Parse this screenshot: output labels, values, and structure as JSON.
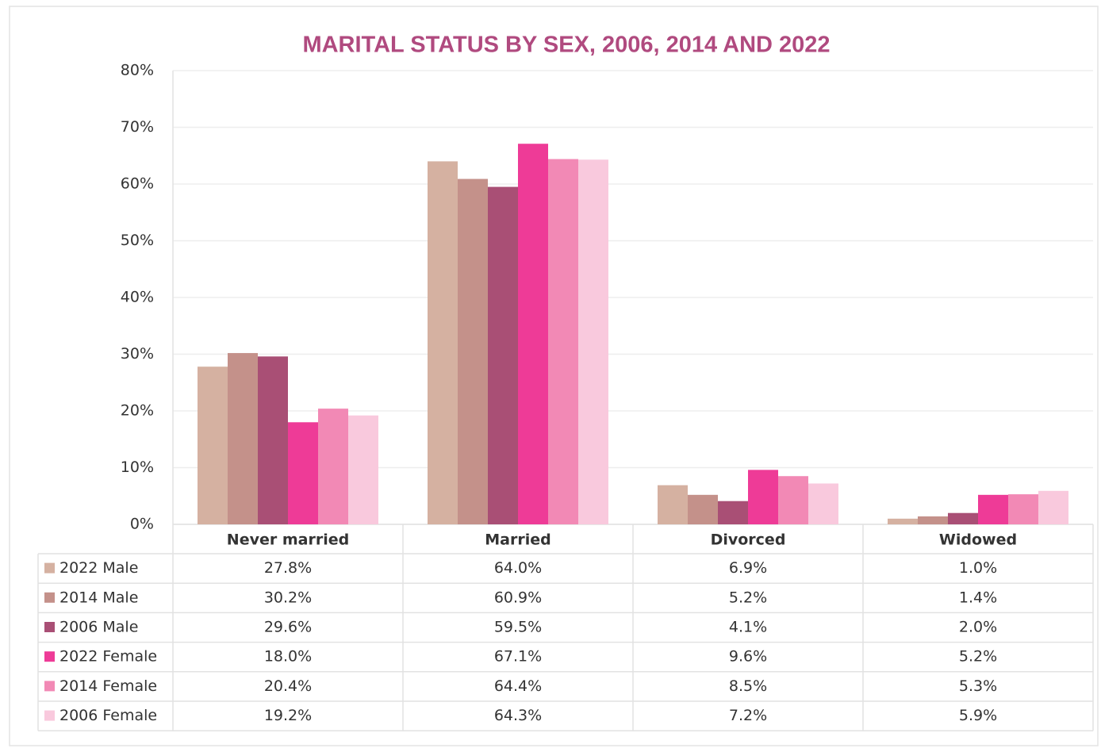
{
  "chart_data": {
    "type": "bar",
    "title": "MARITAL STATUS BY SEX, 2006, 2014 AND 2022",
    "categories": [
      "Never married",
      "Married",
      "Divorced",
      "Widowed"
    ],
    "series": [
      {
        "name": "2022 Male",
        "color": "#d5b1a1",
        "values": [
          27.8,
          64.0,
          6.9,
          1.0
        ],
        "value_labels": [
          "27.8%",
          "64.0%",
          "6.9%",
          "1.0%"
        ]
      },
      {
        "name": "2014 Male",
        "color": "#c4918a",
        "values": [
          30.2,
          60.9,
          5.2,
          1.4
        ],
        "value_labels": [
          "30.2%",
          "60.9%",
          "5.2%",
          "1.4%"
        ]
      },
      {
        "name": "2006 Male",
        "color": "#a94f75",
        "values": [
          29.6,
          59.5,
          4.1,
          2.0
        ],
        "value_labels": [
          "29.6%",
          "59.5%",
          "4.1%",
          "2.0%"
        ]
      },
      {
        "name": "2022 Female",
        "color": "#ee3b97",
        "values": [
          18.0,
          67.1,
          9.6,
          5.2
        ],
        "value_labels": [
          "18.0%",
          "67.1%",
          "9.6%",
          "5.2%"
        ]
      },
      {
        "name": "2014 Female",
        "color": "#f289b5",
        "values": [
          20.4,
          64.4,
          8.5,
          5.3
        ],
        "value_labels": [
          "20.4%",
          "64.4%",
          "8.5%",
          "5.3%"
        ]
      },
      {
        "name": "2006 Female",
        "color": "#f9c9dd",
        "values": [
          19.2,
          64.3,
          7.2,
          5.9
        ],
        "value_labels": [
          "19.2%",
          "64.3%",
          "7.2%",
          "5.9%"
        ]
      }
    ],
    "ylim": [
      0,
      80
    ],
    "yticks": [
      {
        "value": 0,
        "label": "0%"
      },
      {
        "value": 10,
        "label": "10%"
      },
      {
        "value": 20,
        "label": "20%"
      },
      {
        "value": 30,
        "label": "30%"
      },
      {
        "value": 40,
        "label": "40%"
      },
      {
        "value": 50,
        "label": "50%"
      },
      {
        "value": 60,
        "label": "60%"
      },
      {
        "value": 70,
        "label": "70%"
      },
      {
        "value": 80,
        "label": "80%"
      }
    ],
    "grid": true
  }
}
